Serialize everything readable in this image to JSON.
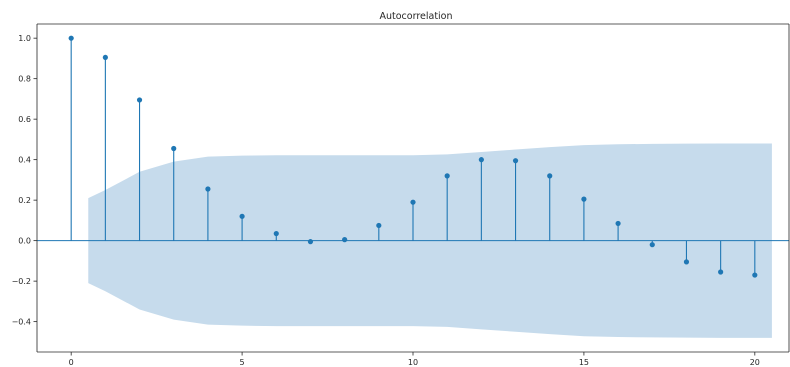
{
  "chart_data": {
    "type": "stem",
    "title": "Autocorrelation",
    "xlabel": "",
    "ylabel": "",
    "xlim": [
      -1,
      21
    ],
    "ylim": [
      -0.55,
      1.07
    ],
    "xticks": [
      0,
      5,
      10,
      15,
      20
    ],
    "xtick_labels": [
      "0",
      "5",
      "10",
      "15",
      "20"
    ],
    "yticks": [
      -0.4,
      -0.2,
      0.0,
      0.2,
      0.4,
      0.6,
      0.8,
      1.0
    ],
    "ytick_labels": [
      "−0.4",
      "−0.2",
      "0.0",
      "0.2",
      "0.4",
      "0.6",
      "0.8",
      "1.0"
    ],
    "grid": false,
    "lags": [
      0,
      1,
      2,
      3,
      4,
      5,
      6,
      7,
      8,
      9,
      10,
      11,
      12,
      13,
      14,
      15,
      16,
      17,
      18,
      19,
      20
    ],
    "values": [
      1.0,
      0.905,
      0.695,
      0.455,
      0.255,
      0.12,
      0.035,
      -0.005,
      0.005,
      0.075,
      0.19,
      0.32,
      0.4,
      0.395,
      0.32,
      0.205,
      0.085,
      -0.02,
      -0.105,
      -0.155,
      -0.17
    ],
    "confidence_band": {
      "x": [
        0.5,
        1,
        2,
        3,
        4,
        5,
        6,
        7,
        8,
        9,
        10,
        11,
        12,
        13,
        14,
        15,
        16,
        17,
        18,
        19,
        20,
        20.5
      ],
      "upper": [
        0.21,
        0.25,
        0.34,
        0.39,
        0.415,
        0.42,
        0.422,
        0.422,
        0.422,
        0.422,
        0.422,
        0.426,
        0.438,
        0.45,
        0.462,
        0.472,
        0.476,
        0.478,
        0.479,
        0.48,
        0.48,
        0.48
      ],
      "lower": [
        -0.21,
        -0.25,
        -0.34,
        -0.39,
        -0.415,
        -0.42,
        -0.422,
        -0.422,
        -0.422,
        -0.422,
        -0.422,
        -0.426,
        -0.438,
        -0.45,
        -0.462,
        -0.472,
        -0.476,
        -0.478,
        -0.479,
        -0.48,
        -0.48,
        -0.48
      ]
    },
    "colors": {
      "stem": "#1f77b4",
      "band": "#c6dbec",
      "axis": "#262626",
      "zero_line": "#1f77b4"
    }
  }
}
